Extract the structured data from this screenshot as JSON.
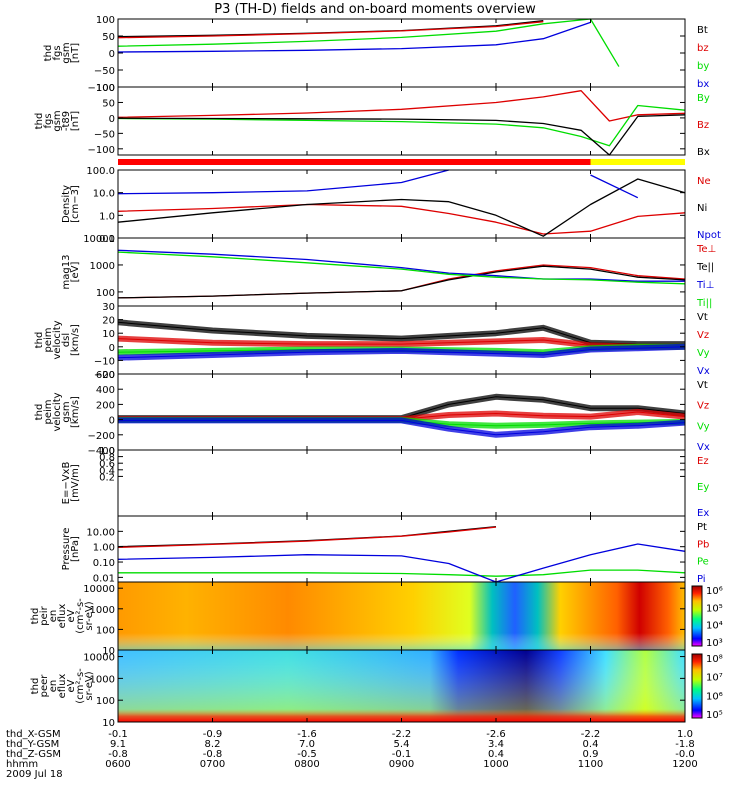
{
  "title": "P3 (TH-D) fields and on-board moments overview",
  "date": "2009 Jul 18",
  "footer": {
    "row_labels": [
      "thd_X-GSM",
      "thd_Y-GSM",
      "thd_Z-GSM",
      "hhmm"
    ],
    "x_gsm": [
      "-0.1",
      "-0.9",
      "-1.6",
      "-2.2",
      "-2.6",
      "-2.2",
      "1.0"
    ],
    "y_gsm": [
      "9.1",
      "8.2",
      "7.0",
      "5.4",
      "3.4",
      "0.4",
      "-1.8"
    ],
    "z_gsm": [
      "-0.8",
      "-0.8",
      "-0.5",
      "-0.1",
      "0.4",
      "0.9",
      "-0.0"
    ],
    "hhmm": [
      "0600",
      "0700",
      "0800",
      "0900",
      "1000",
      "1100",
      "1200"
    ]
  },
  "colorbars": {
    "pcolors": [
      "#ffffff",
      "#000000",
      "#ff0000",
      "#00dd00",
      "#0000ff"
    ],
    "ion_ticks": [
      "10⁶",
      "10⁵",
      "10⁴",
      "10³"
    ],
    "electron_ticks": [
      "10⁸",
      "10⁷",
      "10⁶",
      "10⁵"
    ]
  },
  "chart_data": [
    {
      "type": "line",
      "panel": "fgs",
      "ylabel": [
        "thd",
        "fgs",
        "gsm",
        "[nT]"
      ],
      "ylim": [
        -100,
        100
      ],
      "yticks": [
        "100",
        "50",
        "0",
        "−50",
        "−100"
      ],
      "legend": [
        "Bt",
        "bz",
        "by",
        "bx"
      ],
      "x_hours": [
        6,
        7,
        8,
        9,
        10,
        10.5,
        11,
        11.3,
        11.5,
        12
      ],
      "series": [
        {
          "name": "Bt",
          "values": [
            48,
            52,
            58,
            66,
            80,
            95,
            null,
            null,
            null,
            null
          ]
        },
        {
          "name": "bz",
          "values": [
            45,
            50,
            57,
            65,
            78,
            92,
            null,
            null,
            null,
            null
          ]
        },
        {
          "name": "by",
          "values": [
            20,
            26,
            34,
            46,
            64,
            86,
            110,
            -40,
            null,
            null
          ]
        },
        {
          "name": "bx",
          "values": [
            3,
            5,
            8,
            13,
            24,
            42,
            90,
            null,
            null,
            null
          ]
        }
      ]
    },
    {
      "type": "line",
      "panel": "fgs-t89",
      "ylabel": [
        "thd",
        "fgs",
        "gsm",
        "-t89",
        "[nT]"
      ],
      "ylim": [
        -120,
        100
      ],
      "yticks": [
        "100",
        "50",
        "0",
        "−50",
        "−100"
      ],
      "legend": [
        "By",
        "Bz",
        "Bx"
      ],
      "x_hours": [
        6,
        7,
        8,
        9,
        10,
        10.5,
        10.9,
        11.2,
        11.5,
        12
      ],
      "series": [
        {
          "name": "Bz",
          "values": [
            2,
            8,
            16,
            28,
            50,
            68,
            88,
            -10,
            10,
            15
          ]
        },
        {
          "name": "By",
          "values": [
            -2,
            -4,
            -8,
            -12,
            -20,
            -32,
            -60,
            -90,
            40,
            25
          ]
        },
        {
          "name": "Bx",
          "values": [
            -1,
            -2,
            -3,
            -4,
            -8,
            -18,
            -40,
            -120,
            5,
            10
          ]
        }
      ]
    },
    {
      "type": "line",
      "panel": "density",
      "ylabel": [
        "Density",
        "[cm−3]"
      ],
      "yscale": "log",
      "ylim": [
        0.1,
        100
      ],
      "yticks": [
        "100.0",
        "10.0",
        "1.0",
        "0.1"
      ],
      "legend": [
        "Ne",
        "Ni",
        "Npot"
      ],
      "x_hours": [
        6,
        7,
        8,
        9,
        9.5,
        10,
        10.5,
        11,
        11.5,
        12
      ],
      "series": [
        {
          "name": "Ne",
          "values": [
            1.5,
            2.0,
            3.0,
            2.5,
            1.2,
            0.5,
            0.15,
            0.2,
            0.9,
            1.3
          ]
        },
        {
          "name": "Ni",
          "values": [
            0.5,
            1.3,
            3.0,
            5.0,
            4.0,
            1.0,
            0.12,
            3.0,
            40,
            10
          ]
        },
        {
          "name": "Npot",
          "values": [
            9,
            10,
            12,
            28,
            100,
            null,
            null,
            60,
            6,
            null
          ]
        }
      ]
    },
    {
      "type": "line",
      "panel": "temperature",
      "ylabel": [
        "mag13",
        "[eV]"
      ],
      "yscale": "log",
      "ylim": [
        30,
        10000
      ],
      "yticks": [
        "10000",
        "1000",
        "100"
      ],
      "legend": [
        "Te⊥",
        "Te||",
        "Ti⊥",
        "Ti||"
      ],
      "x_hours": [
        6,
        7,
        8,
        9,
        9.5,
        10,
        10.5,
        11,
        11.5,
        12
      ],
      "series": [
        {
          "name": "Te⊥",
          "values": [
            60,
            70,
            90,
            110,
            300,
            600,
            1000,
            800,
            400,
            300
          ]
        },
        {
          "name": "Te||",
          "values": [
            60,
            70,
            90,
            110,
            280,
            550,
            900,
            700,
            350,
            280
          ]
        },
        {
          "name": "Ti⊥",
          "values": [
            3500,
            2500,
            1600,
            800,
            500,
            400,
            300,
            300,
            250,
            250
          ]
        },
        {
          "name": "Ti||",
          "values": [
            3000,
            2000,
            1200,
            700,
            450,
            350,
            300,
            280,
            230,
            200
          ]
        }
      ]
    },
    {
      "type": "line",
      "panel": "peim-dsl",
      "ylabel": [
        "thd",
        "peim",
        "velocity",
        "dsl",
        "[km/s]"
      ],
      "ylim": [
        -20,
        30
      ],
      "yticks": [
        "30",
        "20",
        "10",
        "0",
        "−10",
        "−20"
      ],
      "legend": [
        "Vt",
        "Vz",
        "Vy",
        "Vx"
      ],
      "x_hours": [
        6,
        7,
        8,
        9,
        10,
        10.5,
        11,
        11.5,
        12
      ],
      "series": [
        {
          "name": "Vt",
          "values": [
            18,
            12,
            8,
            6,
            10,
            14,
            3,
            2,
            2
          ]
        },
        {
          "name": "Vz",
          "values": [
            6,
            3,
            2,
            2,
            4,
            5,
            1,
            0,
            0
          ]
        },
        {
          "name": "Vy",
          "values": [
            -4,
            -3,
            -2,
            -2,
            -3,
            -4,
            -1,
            0,
            0
          ]
        },
        {
          "name": "Vx",
          "values": [
            -8,
            -6,
            -4,
            -3,
            -5,
            -6,
            -2,
            -1,
            0
          ]
        }
      ]
    },
    {
      "type": "line",
      "panel": "peim-gsm",
      "ylabel": [
        "thd",
        "peim",
        "velocity",
        "gsm",
        "[km/s]"
      ],
      "ylim": [
        -400,
        600
      ],
      "yticks": [
        "600",
        "400",
        "200",
        "0",
        "−200",
        "−400"
      ],
      "legend": [
        "Vt",
        "Vz",
        "Vy",
        "Vx"
      ],
      "x_hours": [
        6,
        7,
        8,
        9,
        9.5,
        10,
        10.5,
        11,
        11.5,
        12
      ],
      "series": [
        {
          "name": "Vt",
          "values": [
            20,
            20,
            20,
            20,
            200,
            300,
            260,
            150,
            150,
            80
          ]
        },
        {
          "name": "Vz",
          "values": [
            5,
            5,
            5,
            5,
            60,
            80,
            50,
            40,
            100,
            40
          ]
        },
        {
          "name": "Vy",
          "values": [
            -5,
            -5,
            -5,
            -5,
            -60,
            -80,
            -70,
            -50,
            -40,
            -30
          ]
        },
        {
          "name": "Vx",
          "values": [
            -10,
            -10,
            -10,
            -10,
            -120,
            -200,
            -160,
            -100,
            -80,
            -40
          ]
        }
      ]
    },
    {
      "type": "line",
      "panel": "e-field",
      "ylabel": [
        "E=−VxB",
        "[mV/m]"
      ],
      "ylim": [
        -1,
        1
      ],
      "yticks": [
        "1.0",
        "0.8",
        "0.6",
        "0.4",
        "0.2"
      ],
      "legend": [
        "Ez",
        "Ey",
        "Ex"
      ],
      "series": []
    },
    {
      "type": "line",
      "panel": "pressure",
      "ylabel": [
        "Pressure",
        "[nPa]"
      ],
      "yscale": "log",
      "ylim": [
        0.005,
        100
      ],
      "yticks": [
        "10.00",
        "1.00",
        "0.10",
        "0.01"
      ],
      "legend": [
        "Pt",
        "Pb",
        "Pe",
        "Pi"
      ],
      "x_hours": [
        6,
        7,
        8,
        9,
        9.5,
        10,
        10.5,
        11,
        11.5,
        12
      ],
      "series": [
        {
          "name": "Pt",
          "values": [
            1.0,
            1.5,
            2.5,
            5.0,
            10,
            20,
            null,
            null,
            null,
            null
          ]
        },
        {
          "name": "Pb",
          "values": [
            0.9,
            1.4,
            2.3,
            4.8,
            9,
            19,
            null,
            null,
            null,
            null
          ]
        },
        {
          "name": "Pe",
          "values": [
            0.02,
            0.02,
            0.02,
            0.018,
            0.015,
            0.012,
            0.015,
            0.03,
            0.03,
            0.02
          ]
        },
        {
          "name": "Pi",
          "values": [
            0.15,
            0.2,
            0.3,
            0.25,
            0.08,
            0.005,
            0.04,
            0.3,
            1.5,
            0.5
          ]
        }
      ]
    },
    {
      "type": "heatmap",
      "panel": "peir",
      "ylabel": [
        "thd",
        "peir",
        "en",
        "eflux",
        "eV",
        "(cm²-s-",
        "sr-eV)"
      ],
      "yscale": "log",
      "ylim": [
        10,
        20000
      ],
      "yticks": [
        "10000",
        "1000",
        "100",
        "10"
      ],
      "colorbar_ticks": [
        "10⁶",
        "10⁵",
        "10⁴",
        "10³"
      ]
    },
    {
      "type": "heatmap",
      "panel": "peer",
      "ylabel": [
        "thd",
        "peer",
        "en",
        "eflux",
        "eV",
        "(cm²-s-",
        "sr-eV)"
      ],
      "yscale": "log",
      "ylim": [
        10,
        20000
      ],
      "yticks": [
        "10000",
        "1000",
        "100",
        "10"
      ],
      "colorbar_ticks": [
        "10⁸",
        "10⁷",
        "10⁶",
        "10⁵"
      ]
    }
  ]
}
